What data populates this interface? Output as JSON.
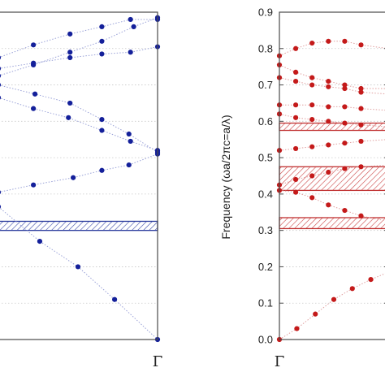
{
  "chart_data": [
    {
      "type": "scatter",
      "title": "",
      "xlabel": "",
      "ylabel": "",
      "x_tick_labels": [
        {
          "x": 1.0,
          "label": "Γ"
        }
      ],
      "xlim": [
        0,
        1
      ],
      "ylim": [
        0,
        0.9
      ],
      "grid": "horizontal-dotted",
      "colors": {
        "point": "#14209a",
        "line": "#9aa2d8",
        "band": "#2a3a9c"
      },
      "band_gaps": [
        [
          0.3,
          0.325
        ]
      ],
      "series": [
        {
          "points": [
            [
              0.0,
              0.365
            ],
            [
              0.26,
              0.27
            ],
            [
              0.5,
              0.2
            ],
            [
              0.73,
              0.11
            ],
            [
              1.0,
              0.0
            ]
          ]
        },
        {
          "points": [
            [
              0.0,
              0.405
            ],
            [
              0.22,
              0.425
            ],
            [
              0.47,
              0.445
            ],
            [
              0.65,
              0.465
            ],
            [
              0.82,
              0.48
            ],
            [
              1.0,
              0.51
            ]
          ]
        },
        {
          "points": [
            [
              0.0,
              0.7
            ],
            [
              0.23,
              0.675
            ],
            [
              0.45,
              0.65
            ],
            [
              0.65,
              0.605
            ],
            [
              0.82,
              0.565
            ],
            [
              1.0,
              0.515
            ]
          ]
        },
        {
          "points": [
            [
              0.0,
              0.665
            ],
            [
              0.22,
              0.635
            ],
            [
              0.44,
              0.61
            ],
            [
              0.65,
              0.575
            ],
            [
              0.83,
              0.545
            ],
            [
              1.0,
              0.52
            ]
          ]
        },
        {
          "points": [
            [
              0.0,
              0.725
            ],
            [
              0.22,
              0.755
            ],
            [
              0.45,
              0.79
            ],
            [
              0.65,
              0.82
            ],
            [
              0.85,
              0.86
            ],
            [
              1.0,
              0.885
            ]
          ]
        },
        {
          "points": [
            [
              0.0,
              0.745
            ],
            [
              0.22,
              0.76
            ],
            [
              0.45,
              0.775
            ],
            [
              0.65,
              0.785
            ],
            [
              0.83,
              0.79
            ],
            [
              1.0,
              0.805
            ]
          ]
        },
        {
          "points": [
            [
              0.0,
              0.775
            ],
            [
              0.22,
              0.81
            ],
            [
              0.45,
              0.84
            ],
            [
              0.65,
              0.86
            ],
            [
              0.83,
              0.88
            ],
            [
              1.0,
              0.88
            ]
          ]
        }
      ]
    },
    {
      "type": "scatter",
      "title": "",
      "xlabel": "",
      "ylabel": "Frequency (ωa/2πc=a/λ)",
      "x_tick_labels": [
        {
          "x": 0.0,
          "label": "Γ"
        }
      ],
      "y_ticks": [
        "0.0",
        "0.1",
        "0.2",
        "0.3",
        "0.4",
        "0.5",
        "0.6",
        "0.7",
        "0.8",
        "0.9"
      ],
      "xlim": [
        0,
        1
      ],
      "ylim": [
        0,
        0.9
      ],
      "grid": "horizontal-dotted",
      "colors": {
        "point": "#c41a1a",
        "line": "#e0a0a0",
        "band": "#c03030"
      },
      "band_gaps": [
        [
          0.305,
          0.335
        ],
        [
          0.41,
          0.475
        ],
        [
          0.575,
          0.595
        ]
      ],
      "series": [
        {
          "points": [
            [
              0.0,
              0.0
            ],
            [
              0.16,
              0.03
            ],
            [
              0.33,
              0.07
            ],
            [
              0.5,
              0.11
            ],
            [
              0.67,
              0.14
            ],
            [
              0.84,
              0.165
            ],
            [
              1.0,
              0.185
            ]
          ]
        },
        {
          "points": [
            [
              0.0,
              0.41
            ],
            [
              0.15,
              0.405
            ],
            [
              0.3,
              0.39
            ],
            [
              0.45,
              0.37
            ],
            [
              0.6,
              0.355
            ],
            [
              0.75,
              0.34
            ],
            [
              1.0,
              0.325
            ]
          ]
        },
        {
          "points": [
            [
              0.0,
              0.425
            ],
            [
              0.15,
              0.44
            ],
            [
              0.3,
              0.45
            ],
            [
              0.45,
              0.46
            ],
            [
              0.6,
              0.47
            ],
            [
              0.75,
              0.475
            ],
            [
              1.0,
              0.48
            ]
          ]
        },
        {
          "points": [
            [
              0.0,
              0.52
            ],
            [
              0.15,
              0.525
            ],
            [
              0.3,
              0.53
            ],
            [
              0.45,
              0.535
            ],
            [
              0.6,
              0.54
            ],
            [
              0.75,
              0.545
            ],
            [
              1.0,
              0.55
            ]
          ]
        },
        {
          "points": [
            [
              0.0,
              0.62
            ],
            [
              0.15,
              0.61
            ],
            [
              0.3,
              0.605
            ],
            [
              0.45,
              0.6
            ],
            [
              0.6,
              0.595
            ],
            [
              0.75,
              0.59
            ],
            [
              1.0,
              0.585
            ]
          ]
        },
        {
          "points": [
            [
              0.0,
              0.645
            ],
            [
              0.15,
              0.645
            ],
            [
              0.3,
              0.645
            ],
            [
              0.45,
              0.64
            ],
            [
              0.6,
              0.64
            ],
            [
              0.75,
              0.635
            ],
            [
              1.0,
              0.63
            ]
          ]
        },
        {
          "points": [
            [
              0.0,
              0.72
            ],
            [
              0.15,
              0.71
            ],
            [
              0.3,
              0.7
            ],
            [
              0.45,
              0.695
            ],
            [
              0.6,
              0.69
            ],
            [
              0.75,
              0.68
            ],
            [
              1.0,
              0.675
            ]
          ]
        },
        {
          "points": [
            [
              0.0,
              0.755
            ],
            [
              0.15,
              0.735
            ],
            [
              0.3,
              0.72
            ],
            [
              0.45,
              0.71
            ],
            [
              0.6,
              0.7
            ],
            [
              0.75,
              0.69
            ],
            [
              1.0,
              0.69
            ]
          ]
        },
        {
          "points": [
            [
              0.0,
              0.78
            ],
            [
              0.15,
              0.8
            ],
            [
              0.3,
              0.815
            ],
            [
              0.45,
              0.82
            ],
            [
              0.6,
              0.82
            ],
            [
              0.75,
              0.81
            ],
            [
              1.0,
              0.8
            ]
          ]
        }
      ]
    }
  ]
}
